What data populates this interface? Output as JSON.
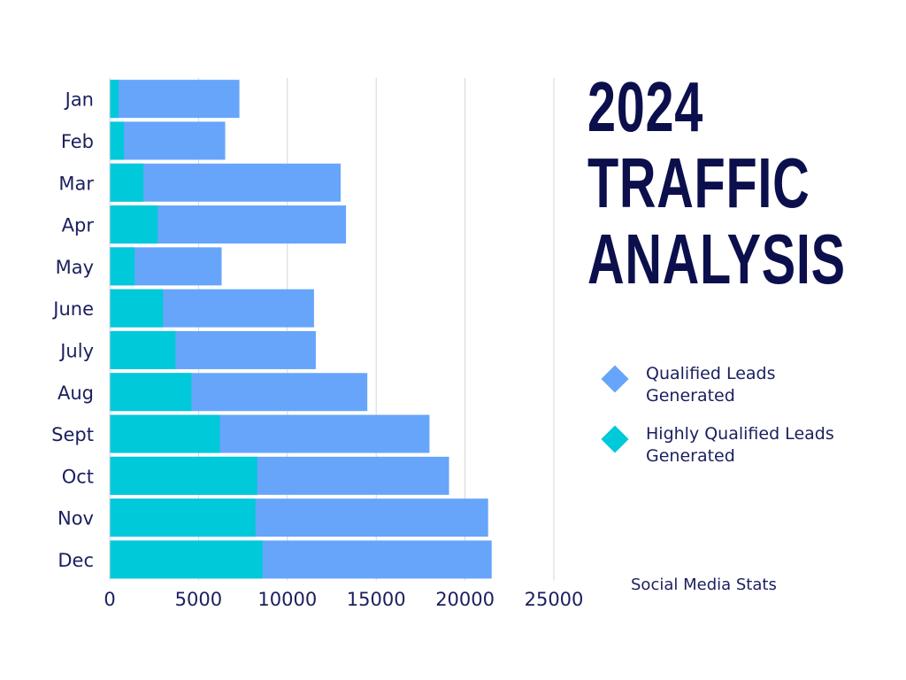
{
  "title_lines": [
    "2024",
    "TRAFFIC",
    "ANALYSIS"
  ],
  "subtitle": "Social Media Stats",
  "colors": {
    "qualified": "#66a5fa",
    "highly_qualified": "#00c9d9",
    "text": "#1a1f5e",
    "title": "#0b0f4c",
    "grid": "#d3d6e0"
  },
  "legend": [
    {
      "label": "Qualified Leads Generated",
      "color": "#66a5fa",
      "icon": "diamond-icon"
    },
    {
      "label": "Highly Qualified Leads Generated",
      "color": "#00c9d9",
      "icon": "diamond-icon"
    }
  ],
  "chart_data": {
    "type": "bar",
    "orientation": "horizontal",
    "stacked": false,
    "overlapped": true,
    "title": "2024 TRAFFIC ANALYSIS",
    "categories": [
      "Jan",
      "Feb",
      "Mar",
      "Apr",
      "May",
      "June",
      "July",
      "Aug",
      "Sept",
      "Oct",
      "Nov",
      "Dec"
    ],
    "series": [
      {
        "name": "Qualified Leads Generated",
        "values": [
          7300,
          6500,
          13000,
          13300,
          6300,
          11500,
          11600,
          14500,
          18000,
          19100,
          21300,
          21500
        ]
      },
      {
        "name": "Highly Qualified Leads Generated",
        "values": [
          500,
          800,
          1900,
          2700,
          1400,
          3000,
          3700,
          4600,
          6200,
          8300,
          8200,
          8600
        ]
      }
    ],
    "x_ticks": [
      "0",
      "5000",
      "10000",
      "15000",
      "20000",
      "25000"
    ],
    "xlim": [
      0,
      25000
    ],
    "grid": true,
    "legend_position": "right"
  }
}
